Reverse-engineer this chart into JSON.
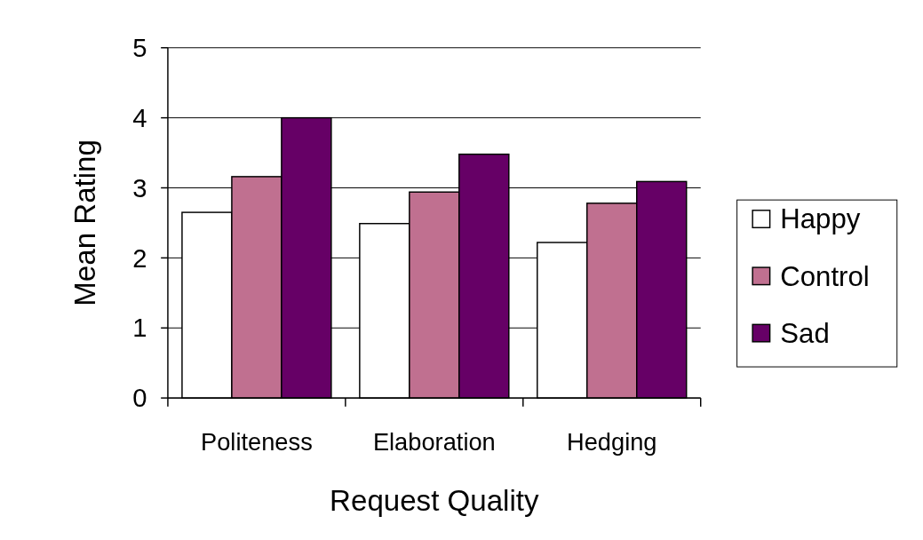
{
  "chart_data": {
    "type": "bar",
    "xlabel": "Request Quality",
    "ylabel": "Mean Rating",
    "categories": [
      "Politeness",
      "Elaboration",
      "Hedging"
    ],
    "series": [
      {
        "name": "Happy",
        "color": "#ffffff",
        "values": [
          2.65,
          2.49,
          2.22
        ]
      },
      {
        "name": "Control",
        "color": "#c07090",
        "values": [
          3.16,
          2.94,
          2.78
        ]
      },
      {
        "name": "Sad",
        "color": "#660066",
        "values": [
          4.0,
          3.48,
          3.09
        ]
      }
    ],
    "ylim": [
      0,
      5
    ],
    "yticks": [
      0,
      1,
      2,
      3,
      4,
      5
    ],
    "grid": "y",
    "legend": "right"
  }
}
